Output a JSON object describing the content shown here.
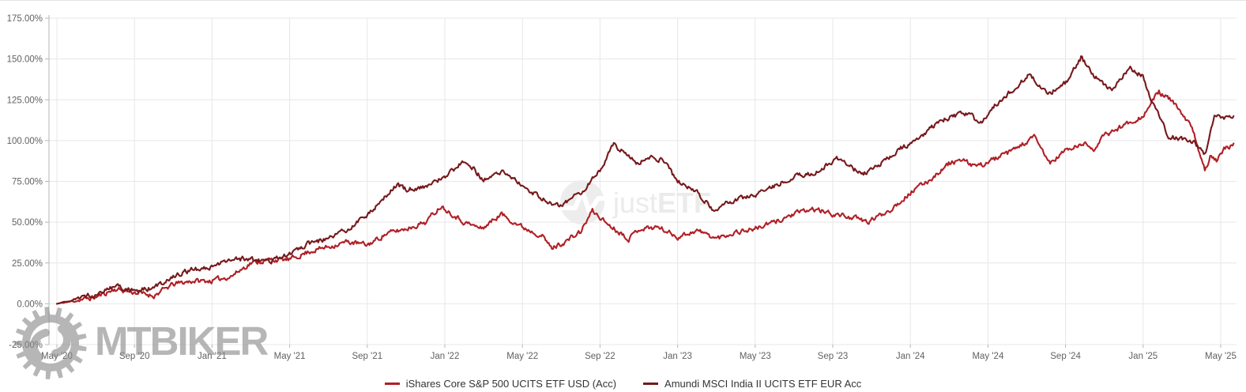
{
  "watermarks": {
    "mtbiker_text": "MTBIKER",
    "justetf_text_light": "just",
    "justetf_text_bold": "ETF"
  },
  "legend": [
    {
      "label": "iShares Core S&P 500 UCITS ETF USD (Acc)",
      "color": "#b01f26"
    },
    {
      "label": "Amundi MSCI India II UCITS ETF EUR Acc",
      "color": "#76191c"
    }
  ],
  "chart_data": {
    "type": "line",
    "title": "",
    "xlabel": "",
    "ylabel": "",
    "grid": true,
    "legend_position": "bottom",
    "x_unit": "months since May 2020",
    "y_unit": "cumulative return %",
    "x_axis": {
      "tick_labels": [
        "May '20",
        "Sep '20",
        "Jan '21",
        "May '21",
        "Sep '21",
        "Jan '22",
        "May '22",
        "Sep '22",
        "Jan '23",
        "May '23",
        "Sep '23",
        "Jan '24",
        "May '24",
        "Sep '24",
        "Jan '25",
        "May '25"
      ],
      "months_per_tick": 4
    },
    "y_axis": {
      "min": -25,
      "max": 175,
      "step": 25,
      "tick_labels": [
        "175.00%",
        "150.00%",
        "125.00%",
        "100.00%",
        "75.00%",
        "50.00%",
        "25.00%",
        "0.00%",
        "-25.00%"
      ]
    },
    "series": [
      {
        "name": "iShares Core S&P 500 UCITS ETF USD (Acc)",
        "color": "#b01f26",
        "points": [
          [
            0,
            0
          ],
          [
            1,
            2
          ],
          [
            2,
            4
          ],
          [
            3,
            9
          ],
          [
            4,
            7
          ],
          [
            5,
            5
          ],
          [
            6,
            12
          ],
          [
            7,
            14
          ],
          [
            8,
            14
          ],
          [
            9,
            17
          ],
          [
            10,
            25
          ],
          [
            11,
            27
          ],
          [
            12,
            27
          ],
          [
            13,
            32
          ],
          [
            14,
            35
          ],
          [
            15,
            38
          ],
          [
            16,
            36
          ],
          [
            17,
            43
          ],
          [
            18,
            46
          ],
          [
            19,
            50
          ],
          [
            19.8,
            60
          ],
          [
            21,
            50
          ],
          [
            21.9,
            46
          ],
          [
            22.9,
            55
          ],
          [
            24,
            47
          ],
          [
            25,
            42
          ],
          [
            25.5,
            34
          ],
          [
            26.2,
            38
          ],
          [
            27,
            44
          ],
          [
            27.6,
            57
          ],
          [
            28.5,
            48
          ],
          [
            29.5,
            40
          ],
          [
            30,
            46
          ],
          [
            31,
            47
          ],
          [
            32,
            41
          ],
          [
            33,
            45
          ],
          [
            34,
            40
          ],
          [
            35,
            44
          ],
          [
            36,
            46
          ],
          [
            37,
            50
          ],
          [
            38,
            55
          ],
          [
            39,
            58
          ],
          [
            40,
            55
          ],
          [
            41,
            53
          ],
          [
            41.8,
            50
          ],
          [
            43,
            58
          ],
          [
            44,
            68
          ],
          [
            45,
            76
          ],
          [
            46,
            86
          ],
          [
            46.5,
            88
          ],
          [
            47.5,
            84
          ],
          [
            48,
            87
          ],
          [
            49,
            92
          ],
          [
            50.4,
            102
          ],
          [
            51.2,
            86
          ],
          [
            52,
            94
          ],
          [
            53,
            98
          ],
          [
            53.5,
            95
          ],
          [
            54,
            103
          ],
          [
            55.4,
            112
          ],
          [
            56,
            115
          ],
          [
            56.8,
            130
          ],
          [
            57.5,
            124
          ],
          [
            58.5,
            108
          ],
          [
            59.2,
            82
          ],
          [
            59.5,
            92
          ],
          [
            59.8,
            88
          ],
          [
            60.2,
            95
          ],
          [
            60.7,
            97
          ]
        ]
      },
      {
        "name": "Amundi MSCI India II UCITS ETF EUR Acc",
        "color": "#76191c",
        "points": [
          [
            0,
            0
          ],
          [
            1,
            3
          ],
          [
            2,
            6
          ],
          [
            3,
            11
          ],
          [
            4,
            8
          ],
          [
            5,
            10
          ],
          [
            6,
            17
          ],
          [
            7,
            21
          ],
          [
            8,
            22
          ],
          [
            9,
            28
          ],
          [
            10,
            27
          ],
          [
            11,
            26
          ],
          [
            12,
            31
          ],
          [
            13,
            37
          ],
          [
            14,
            40
          ],
          [
            15,
            46
          ],
          [
            16,
            54
          ],
          [
            16.5,
            61
          ],
          [
            17.5,
            73
          ],
          [
            18,
            70
          ],
          [
            19,
            72
          ],
          [
            20,
            78
          ],
          [
            21.1,
            88
          ],
          [
            22,
            76
          ],
          [
            23,
            81
          ],
          [
            24,
            72
          ],
          [
            25,
            65
          ],
          [
            25.8,
            60
          ],
          [
            26.5,
            64
          ],
          [
            27,
            68
          ],
          [
            28,
            82
          ],
          [
            28.7,
            98
          ],
          [
            29.3,
            92
          ],
          [
            30,
            86
          ],
          [
            30.7,
            91
          ],
          [
            31.3,
            87
          ],
          [
            32,
            75
          ],
          [
            33,
            68
          ],
          [
            33.9,
            57
          ],
          [
            34.5,
            61
          ],
          [
            35,
            64
          ],
          [
            36,
            67
          ],
          [
            37,
            72
          ],
          [
            38,
            78
          ],
          [
            39,
            80
          ],
          [
            40.3,
            89
          ],
          [
            41.5,
            79
          ],
          [
            42.5,
            86
          ],
          [
            43.5,
            95
          ],
          [
            44.5,
            102
          ],
          [
            45.5,
            112
          ],
          [
            46,
            114
          ],
          [
            47,
            117
          ],
          [
            47.6,
            110
          ],
          [
            48.3,
            121
          ],
          [
            49,
            128
          ],
          [
            50.1,
            140
          ],
          [
            51.2,
            129
          ],
          [
            52,
            135
          ],
          [
            52.8,
            151
          ],
          [
            53.5,
            139
          ],
          [
            54.4,
            131
          ],
          [
            55.3,
            145
          ],
          [
            56,
            139
          ],
          [
            56.6,
            120
          ],
          [
            57.3,
            103
          ],
          [
            58,
            101
          ],
          [
            58.6,
            99
          ],
          [
            59.2,
            92
          ],
          [
            59.7,
            116
          ],
          [
            60,
            113
          ],
          [
            60.7,
            116
          ]
        ]
      }
    ]
  }
}
